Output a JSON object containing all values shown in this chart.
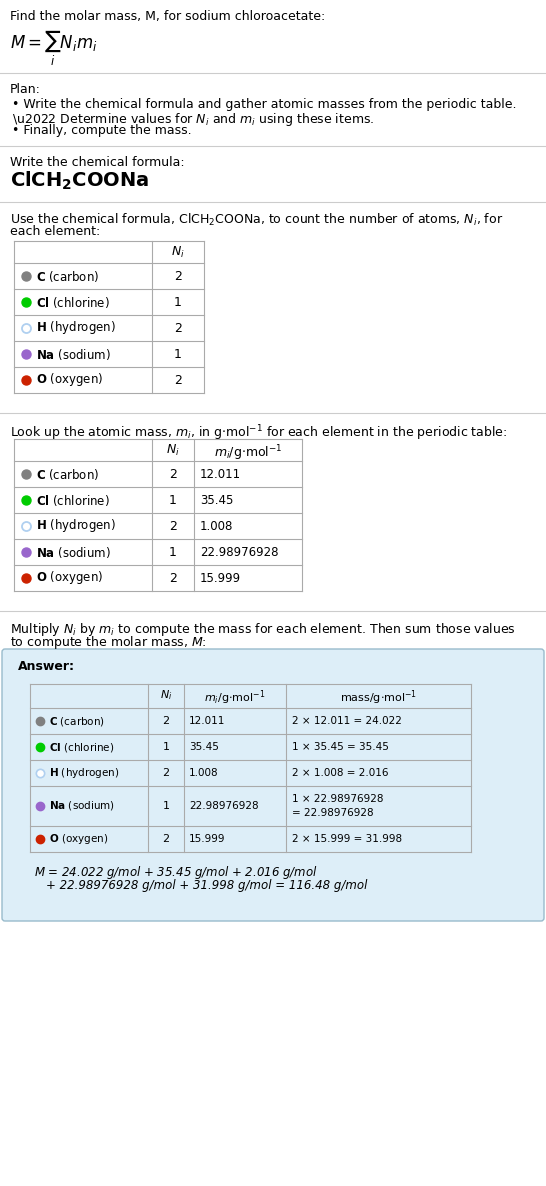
{
  "title_line": "Find the molar mass, M, for sodium chloroacetate:",
  "plan_header": "Plan:",
  "plan_bullets": [
    "Write the chemical formula and gather atomic masses from the periodic table.",
    "Determine values for Nᵢ and mᵢ using these items.",
    "Finally, compute the mass."
  ],
  "section2_header": "Write the chemical formula:",
  "section3_header": "Use the chemical formula, ClCH₂COONa, to count the number of atoms, Nᵢ, for each element:",
  "section4_header": "Look up the atomic mass, mᵢ, in g·mol⁻¹ for each element in the periodic table:",
  "section5_header_l1": "Multiply Nᵢ by mᵢ to compute the mass for each element. Then sum those values",
  "section5_header_l2": "to compute the molar mass, M:",
  "answer_label": "Answer:",
  "elements": [
    {
      "symbol": "C",
      "name": "carbon",
      "color": "#808080",
      "filled": true,
      "Ni": "2",
      "mi": "12.011"
    },
    {
      "symbol": "Cl",
      "name": "chlorine",
      "color": "#00cc00",
      "filled": true,
      "Ni": "1",
      "mi": "35.45"
    },
    {
      "symbol": "H",
      "name": "hydrogen",
      "color": "#b0d0f0",
      "filled": false,
      "Ni": "2",
      "mi": "1.008"
    },
    {
      "symbol": "Na",
      "name": "sodium",
      "color": "#9966cc",
      "filled": true,
      "Ni": "1",
      "mi": "22.98976928"
    },
    {
      "symbol": "O",
      "name": "oxygen",
      "color": "#cc2200",
      "filled": true,
      "Ni": "2",
      "mi": "15.999"
    }
  ],
  "mass_values": [
    "2 × 12.011 = 24.022",
    "1 × 35.45 = 35.45",
    "2 × 1.008 = 2.016",
    "1 × 22.98976928\n= 22.98976928",
    "2 × 15.999 = 31.998"
  ],
  "final_eq_line1": "M = 24.022 g/mol + 35.45 g/mol + 2.016 g/mol",
  "final_eq_line2": "+ 22.98976928 g/mol + 31.998 g/mol = 116.48 g/mol",
  "bg_color": "#ffffff",
  "answer_bg": "#ddeef8",
  "answer_border": "#99bbcc",
  "text_color": "#000000",
  "sep_color": "#cccccc",
  "table_line_color": "#aaaaaa"
}
